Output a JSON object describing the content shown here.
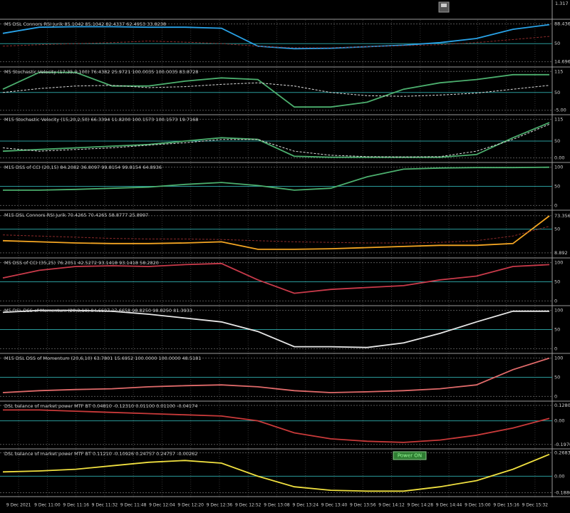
{
  "top_strip": {
    "price_label": "1.317"
  },
  "panels": [
    {
      "title": "M5 DSL Connors RSI Jurik 85.1042 85.1042 82.4337 62.4953 33.8238",
      "ylim": [
        10,
        92
      ],
      "ticks": [
        {
          "value": 88.436,
          "label": "88.436"
        },
        50,
        {
          "value": 14.696,
          "label": "14.696"
        }
      ],
      "lines": [
        {
          "color": "#29a3e8",
          "values": [
            70,
            82,
            83,
            83,
            82,
            82,
            80,
            45,
            40,
            41,
            44,
            47,
            52,
            60,
            78,
            87
          ]
        },
        {
          "color": "#8b2a2a",
          "dash": true,
          "values": [
            45,
            48,
            50,
            52,
            55,
            53,
            50,
            45,
            42,
            42,
            44,
            46,
            48,
            52,
            58,
            64
          ]
        }
      ]
    },
    {
      "title": "M5  Stochastic Velocity (17,35,3,100) 76.4382 25.9721 100.0035 100.0035 83.8728",
      "ylim": [
        -10,
        120
      ],
      "ticks": [
        115,
        50,
        {
          "value": -5,
          "label": "-5.00"
        }
      ],
      "lines": [
        {
          "color": "#4caf6e",
          "values": [
            60,
            112,
            112,
            70,
            70,
            85,
            95,
            90,
            5,
            5,
            20,
            60,
            80,
            90,
            105,
            105
          ]
        },
        {
          "color": "#dddddd",
          "dash": true,
          "values": [
            50,
            62,
            70,
            72,
            65,
            68,
            75,
            80,
            70,
            50,
            40,
            38,
            42,
            48,
            60,
            72
          ]
        }
      ]
    },
    {
      "title": "M15   Stochastic Velocity (15,20,2,50) 66.3394 11.8200 100.1573 100.1573 19.7168",
      "ylim": [
        -5,
        120
      ],
      "ticks": [
        115,
        50,
        {
          "value": 0,
          "label": "0.00"
        }
      ],
      "lines": [
        {
          "color": "#4caf6e",
          "values": [
            20,
            25,
            30,
            35,
            40,
            50,
            60,
            55,
            5,
            2,
            2,
            2,
            2,
            10,
            60,
            105
          ]
        },
        {
          "color": "#dddddd",
          "dash": true,
          "values": [
            30,
            20,
            25,
            30,
            38,
            45,
            55,
            55,
            20,
            8,
            4,
            3,
            4,
            20,
            55,
            100
          ]
        }
      ]
    },
    {
      "title": "M15 DSS of CCI (20,15) 84.2082 36.8097 99.8154 99.8154 64.8936",
      "ylim": [
        -5,
        105
      ],
      "ticks": [
        100,
        50,
        0
      ],
      "lines": [
        {
          "color": "#4caf6e",
          "values": [
            40,
            40,
            42,
            45,
            48,
            55,
            60,
            52,
            40,
            45,
            75,
            95,
            98,
            99,
            99,
            100
          ]
        }
      ]
    },
    {
      "title": "M15 DSL Connors RSI Jurik 70.4265 70.4265 58.8777 25.8997",
      "ylim": [
        5,
        78
      ],
      "ticks": [
        {
          "value": 73.356,
          "label": "73.356"
        },
        50,
        {
          "value": 8.892,
          "label": "8.892"
        }
      ],
      "lines": [
        {
          "color": "#f5a623",
          "values": [
            30,
            28,
            26,
            25,
            25,
            26,
            28,
            15,
            15,
            16,
            18,
            20,
            22,
            22,
            25,
            73
          ]
        },
        {
          "color": "#8b2a2a",
          "dash": true,
          "values": [
            40,
            38,
            36,
            34,
            33,
            33,
            32,
            30,
            28,
            27,
            26,
            26,
            27,
            30,
            38,
            55
          ]
        }
      ]
    },
    {
      "title": "M5 DSS of CCI (35,25) 76.2051 42.5272 93.1418 93.1418 58.2820",
      "ylim": [
        -5,
        105
      ],
      "ticks": [
        100,
        50,
        0
      ],
      "lines": [
        {
          "color": "#c93a4a",
          "values": [
            60,
            80,
            90,
            92,
            90,
            95,
            98,
            55,
            20,
            30,
            35,
            40,
            55,
            65,
            90,
            95
          ]
        }
      ]
    },
    {
      "title": "M5 DSL DSS of Momentum (20,3,10) 84.6607 27.6658 98.8250 98.8250 81.3933",
      "ylim": [
        -5,
        105
      ],
      "ticks": [
        100,
        50,
        0
      ],
      "lines": [
        {
          "color": "#e8e8e8",
          "values": [
            95,
            100,
            100,
            98,
            90,
            80,
            70,
            45,
            5,
            5,
            3,
            15,
            40,
            70,
            98,
            98
          ]
        }
      ]
    },
    {
      "title": "M15 DSL DSS of Momentum (20,6,10) 63.7801 15.6952 100.0000 100.0000 48.5181",
      "ylim": [
        -5,
        105
      ],
      "ticks": [
        100,
        50,
        0
      ],
      "lines": [
        {
          "color": "#e06a6a",
          "values": [
            10,
            15,
            18,
            20,
            25,
            28,
            30,
            25,
            15,
            10,
            12,
            15,
            20,
            30,
            70,
            100
          ]
        }
      ]
    },
    {
      "title": "DSL balance of market power MTF BT 0.04810 -0.12310 0.01100 0.01100 -0.04174",
      "ylim": [
        -0.21,
        0.14
      ],
      "ticks": [
        {
          "value": 0.128,
          "label": "0.1280"
        },
        {
          "value": 0,
          "label": "0.00"
        },
        {
          "value": -0.197,
          "label": "-0.1970"
        }
      ],
      "lines": [
        {
          "color": "#c93a3a",
          "values": [
            0.09,
            0.09,
            0.08,
            0.07,
            0.06,
            0.05,
            0.04,
            0.0,
            -0.1,
            -0.15,
            -0.17,
            -0.18,
            -0.16,
            -0.12,
            -0.06,
            0.02
          ]
        }
      ]
    },
    {
      "title": "DSL balance of market power MTF BT 0.11210 -0.10926 0.24757 0.24757 -0.00262",
      "ylim": [
        -0.2,
        0.28
      ],
      "ticks": [
        {
          "value": 0.2683,
          "label": "0.2683"
        },
        {
          "value": 0,
          "label": "0.00"
        },
        {
          "value": -0.188,
          "label": "-0.1880"
        }
      ],
      "button": "Power ON",
      "lines": [
        {
          "color": "#f0e040",
          "values": [
            0.05,
            0.06,
            0.08,
            0.12,
            0.16,
            0.18,
            0.15,
            0.0,
            -0.12,
            -0.16,
            -0.17,
            -0.17,
            -0.12,
            -0.05,
            0.08,
            0.25
          ]
        }
      ]
    }
  ],
  "time_axis": [
    "9 Dec 2021",
    "9 Dec 11:00",
    "9 Dec 11:16",
    "9 Dec 11:32",
    "9 Dec 11:48",
    "9 Dec 12:04",
    "9 Dec 12:20",
    "9 Dec 12:36",
    "9 Dec 12:52",
    "9 Dec 13:08",
    "9 Dec 13:24",
    "9 Dec 13:40",
    "9 Dec 13:56",
    "9 Dec 14:12",
    "9 Dec 14:28",
    "9 Dec 14:44",
    "9 Dec 15:00",
    "9 Dec 15:16",
    "9 Dec 15:32"
  ]
}
